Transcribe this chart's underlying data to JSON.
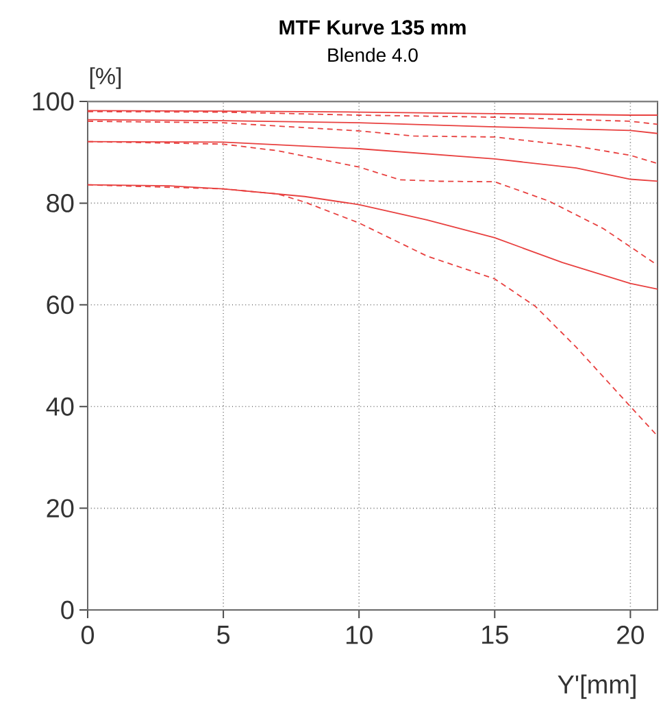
{
  "chart_data": {
    "type": "line",
    "title": "MTF Kurve 135 mm",
    "subtitle": "Blende 4.0",
    "xlabel": "Y'[mm]",
    "ylabel": "[%]",
    "xlim": [
      0,
      21
    ],
    "ylim": [
      0,
      100
    ],
    "xticks": [
      0,
      5,
      10,
      15,
      20
    ],
    "yticks": [
      0,
      20,
      40,
      60,
      80,
      100
    ],
    "grid": true,
    "marker": "none",
    "series": [
      {
        "color": "#e8403f",
        "line_style": "solid",
        "x": [
          0,
          5,
          10,
          15,
          20,
          21
        ],
        "values": [
          98.2,
          98.1,
          97.9,
          97.6,
          97.3,
          97.3
        ]
      },
      {
        "color": "#e8403f",
        "line_style": "dashed",
        "x": [
          0,
          5,
          10,
          15,
          20,
          21
        ],
        "values": [
          98.0,
          97.9,
          97.3,
          96.9,
          96.1,
          95.5
        ]
      },
      {
        "color": "#e8403f",
        "line_style": "solid",
        "x": [
          0,
          5,
          10,
          15,
          20,
          21
        ],
        "values": [
          96.4,
          96.2,
          95.8,
          95.0,
          94.3,
          93.7
        ]
      },
      {
        "color": "#e8403f",
        "line_style": "dashed",
        "x": [
          0,
          5,
          10,
          12,
          15,
          18,
          20,
          21
        ],
        "values": [
          96.1,
          95.8,
          94.2,
          93.2,
          93.0,
          91.2,
          89.4,
          87.8
        ]
      },
      {
        "color": "#e8403f",
        "line_style": "solid",
        "x": [
          0,
          5,
          10,
          15,
          18,
          20,
          21
        ],
        "values": [
          92.1,
          92.0,
          90.7,
          88.7,
          86.9,
          84.7,
          84.3
        ]
      },
      {
        "color": "#e8403f",
        "line_style": "dashed",
        "x": [
          0,
          5,
          7,
          10,
          11.5,
          13,
          15,
          17,
          19,
          20,
          21
        ],
        "values": [
          92.1,
          91.6,
          90.3,
          87.1,
          84.6,
          84.3,
          84.2,
          80.4,
          75.0,
          71.4,
          67.8
        ]
      },
      {
        "color": "#e8403f",
        "line_style": "solid",
        "x": [
          0,
          3,
          5,
          8,
          10,
          12.5,
          15,
          17.5,
          20,
          21
        ],
        "values": [
          83.6,
          83.4,
          82.8,
          81.3,
          79.7,
          76.7,
          73.2,
          68.3,
          64.2,
          63.1
        ]
      },
      {
        "color": "#e8403f",
        "line_style": "dashed",
        "x": [
          0,
          5,
          7,
          8,
          10,
          12.5,
          15,
          16.5,
          18,
          20,
          21
        ],
        "values": [
          83.6,
          82.8,
          81.8,
          80.2,
          76.1,
          69.6,
          65.1,
          59.7,
          51.7,
          40.0,
          34.2
        ]
      }
    ]
  }
}
